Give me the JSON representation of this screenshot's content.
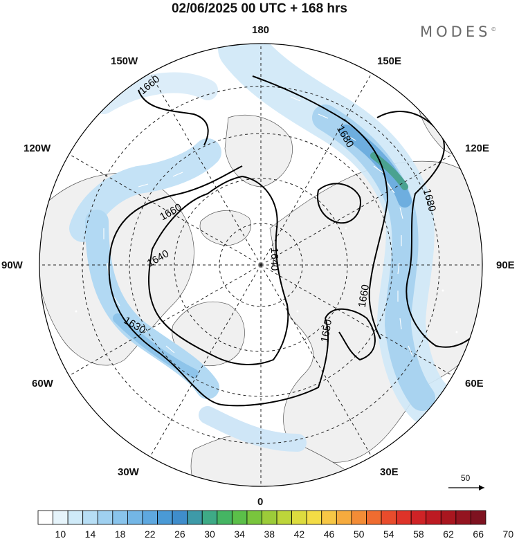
{
  "title": "02/06/2025  00 UTC  + 168 hrs",
  "brand": {
    "name": "MODES",
    "mark": "©"
  },
  "longitudes": {
    "n180": "180",
    "e150": "150E",
    "e120": "120E",
    "e90": "90E",
    "e60": "60E",
    "e30": "30E",
    "s0": "0",
    "w30": "30W",
    "w60": "60W",
    "w90": "90W",
    "w120": "120W",
    "w150": "150W"
  },
  "contours": {
    "c1660a": "1660",
    "c1660b": "1660",
    "c1640a": "1640",
    "c1640b": "1640",
    "c1630": "1630",
    "c1650": "1650",
    "c1660c": "1660",
    "c1680a": "1680",
    "c1680b": "1680"
  },
  "wind_reference": "50",
  "colorbar": {
    "labels": [
      "10",
      "14",
      "18",
      "22",
      "26",
      "30",
      "34",
      "38",
      "42",
      "46",
      "50",
      "54",
      "58",
      "62",
      "66",
      "70"
    ],
    "colors": [
      "#ffffff",
      "#e6f4fb",
      "#cfeaf8",
      "#b7def5",
      "#9fd0f0",
      "#89c4ec",
      "#73b6e6",
      "#5ea8e0",
      "#4a9ad6",
      "#3f8dcb",
      "#3e9aa8",
      "#3eaa86",
      "#45b563",
      "#5bbf49",
      "#79c53d",
      "#9ccc39",
      "#bdd53a",
      "#dddc3e",
      "#f3dc45",
      "#f7c745",
      "#f6ab3e",
      "#f38c36",
      "#ef6c30",
      "#e94c2c",
      "#de3329",
      "#cf2326",
      "#bd1a22",
      "#a9161f",
      "#941420",
      "#7e1220"
    ]
  }
}
